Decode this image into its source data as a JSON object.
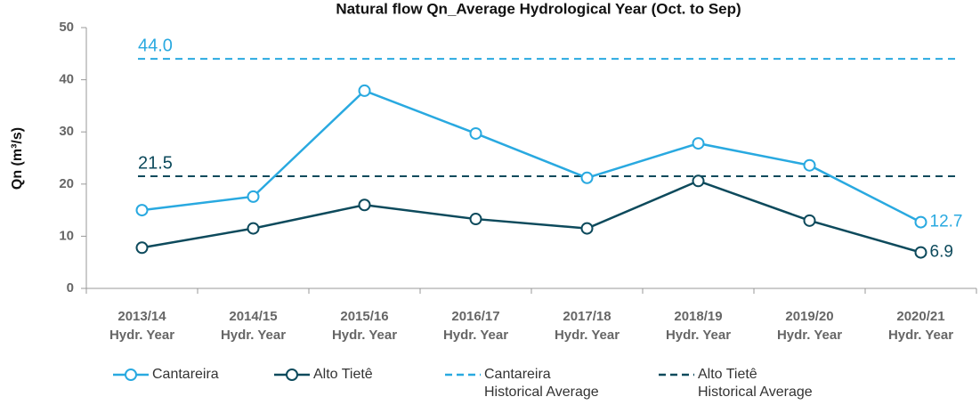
{
  "chart_data": {
    "type": "line",
    "title": "Natural flow Qn_Average Hydrological Year (Oct. to Sep)",
    "y_label": "Qn (m³/s)",
    "categories": [
      [
        "2013/14",
        "Hydr. Year"
      ],
      [
        "2014/15",
        "Hydr. Year"
      ],
      [
        "2015/16",
        "Hydr. Year"
      ],
      [
        "2016/17",
        "Hydr. Year"
      ],
      [
        "2017/18",
        "Hydr. Year"
      ],
      [
        "2018/19",
        "Hydr. Year"
      ],
      [
        "2019/20",
        "Hydr. Year"
      ],
      [
        "2020/21",
        "Hydr. Year"
      ]
    ],
    "series": [
      {
        "name": "Cantareira",
        "color": "#29a9e0",
        "values": [
          15.0,
          17.6,
          37.9,
          29.7,
          21.2,
          27.8,
          23.6,
          12.7
        ]
      },
      {
        "name": "Alto Tietê",
        "color": "#0d4a5c",
        "values": [
          7.8,
          11.5,
          16.0,
          13.3,
          11.5,
          20.6,
          13.0,
          6.9
        ]
      }
    ],
    "label_points": "last",
    "reference_lines": [
      {
        "name": [
          "Cantareira",
          "Historical Average"
        ],
        "color": "#29a9e0",
        "value": 44,
        "value_label": "44.0"
      },
      {
        "name": [
          "Alto Tietê",
          "Historical Average"
        ],
        "color": "#0d4a5c",
        "value": 21.5
      }
    ],
    "ylim": [
      0,
      50
    ],
    "yticks": [
      0,
      10,
      20,
      30,
      40,
      50
    ],
    "legend": "bottom"
  }
}
